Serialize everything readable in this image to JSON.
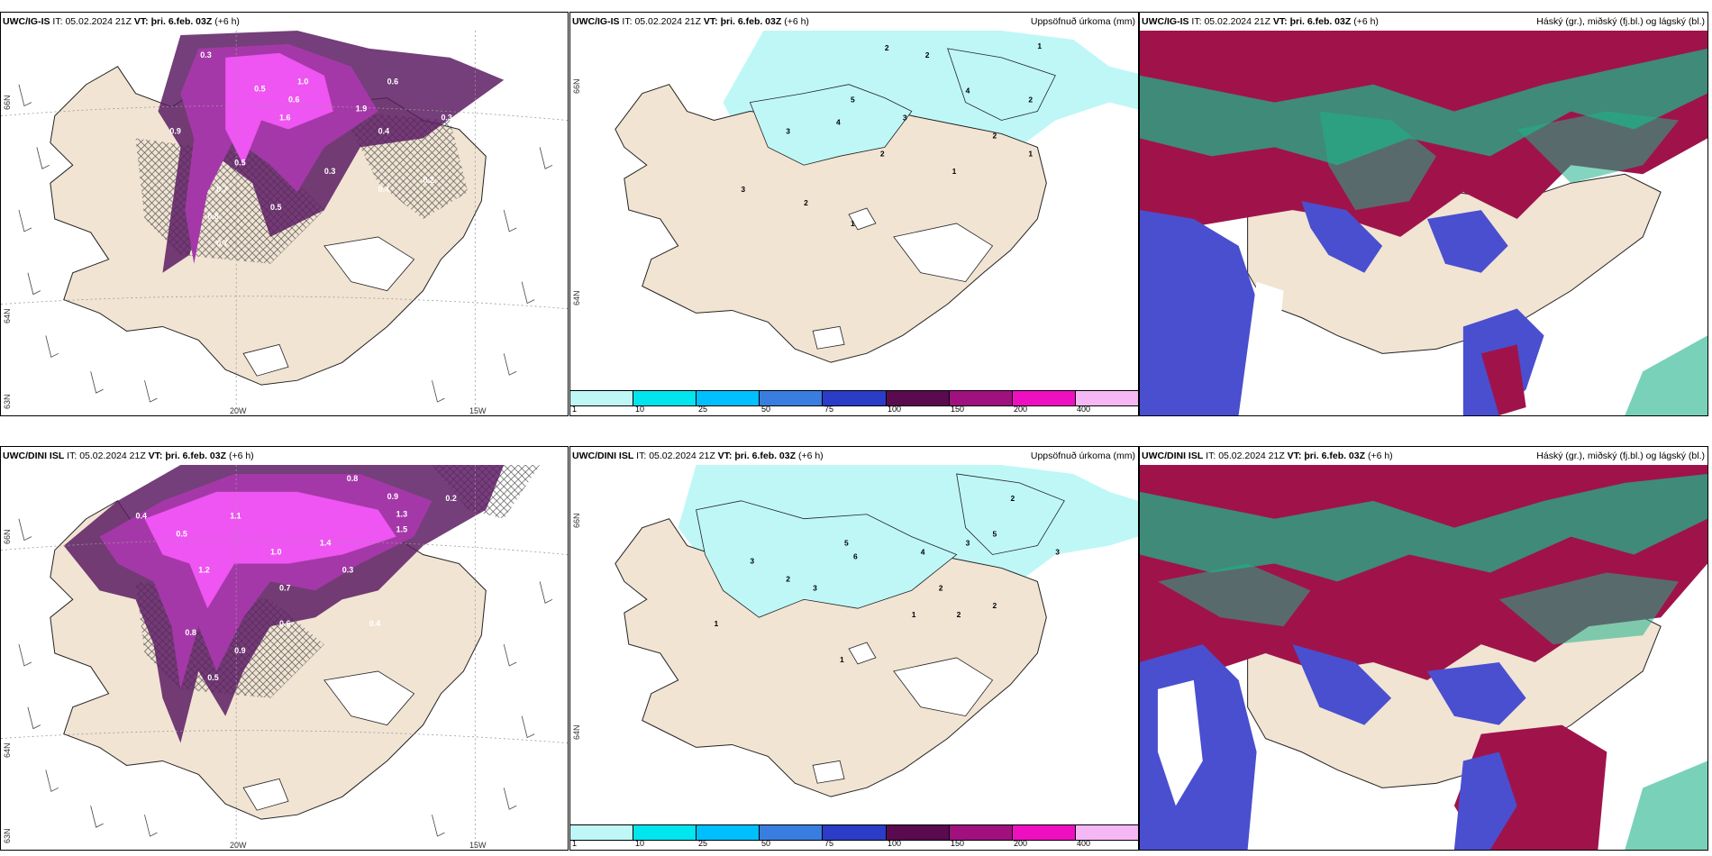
{
  "panels": [
    {
      "model": "UWC/IG-IS",
      "it_label": "IT:",
      "it_value": "05.02.2024 21Z",
      "vt_label": "VT:",
      "vt_value": "þri. 6.feb. 03Z",
      "lead": "(+6 h)",
      "right_title": "",
      "coords": {
        "lat1": "66N",
        "lat2": "64N",
        "lat3": "63N",
        "lon1": "20W",
        "lon2": "15W"
      },
      "values": [
        "0.3",
        "0.5",
        "0.6",
        "0.9",
        "1.6",
        "1.9",
        "0.4",
        "0.7",
        "0.5",
        "0.8",
        "0.3",
        "0.2",
        "0.4",
        "0.5",
        "0.7",
        "1.0",
        "0.3",
        "0.6"
      ]
    },
    {
      "model": "UWC/IG-IS",
      "it_label": "IT:",
      "it_value": "05.02.2024 21Z",
      "vt_label": "VT:",
      "vt_value": "þri. 6.feb. 03Z",
      "lead": "(+6 h)",
      "right_title": "Uppsöfnuð úrkoma (mm)",
      "coords": {
        "lat1": "66N",
        "lat2": "64N"
      },
      "values": [
        "2",
        "2",
        "1",
        "3",
        "4",
        "5",
        "2",
        "3",
        "4",
        "2",
        "1",
        "1",
        "2",
        "3",
        "1",
        "2"
      ]
    },
    {
      "model": "UWC/IG-IS",
      "it_label": "IT:",
      "it_value": "05.02.2024 21Z",
      "vt_label": "VT:",
      "vt_value": "þri. 6.feb. 03Z",
      "lead": "(+6 h)",
      "right_title": "Háský (gr.), miðský (fj.bl.) og lágský (bl.)"
    },
    {
      "model": "UWC/DINI ISL",
      "it_label": "IT:",
      "it_value": "05.02.2024 21Z",
      "vt_label": "VT:",
      "vt_value": "þri. 6.feb. 03Z",
      "lead": "(+6 h)",
      "right_title": "",
      "coords": {
        "lat1": "66N",
        "lat2": "64N",
        "lat3": "63N",
        "lon1": "20W",
        "lon2": "15W"
      },
      "values": [
        "0.8",
        "0.9",
        "1.3",
        "1.5",
        "0.4",
        "0.5",
        "1.2",
        "1.0",
        "0.7",
        "0.3",
        "0.6",
        "0.8",
        "1.4",
        "0.5",
        "0.9",
        "0.4",
        "0.2",
        "1.1"
      ]
    },
    {
      "model": "UWC/DINI ISL",
      "it_label": "IT:",
      "it_value": "05.02.2024 21Z",
      "vt_label": "VT:",
      "vt_value": "þri. 6.feb. 03Z",
      "lead": "(+6 h)",
      "right_title": "Uppsöfnuð úrkoma (mm)",
      "coords": {
        "lat1": "66N",
        "lat2": "64N"
      },
      "values": [
        "2",
        "3",
        "5",
        "6",
        "4",
        "3",
        "2",
        "1",
        "5",
        "3",
        "2",
        "1",
        "2",
        "3",
        "1",
        "2"
      ]
    },
    {
      "model": "UWC/DINI ISL",
      "it_label": "IT:",
      "it_value": "05.02.2024 21Z",
      "vt_label": "VT:",
      "vt_value": "þri. 6.feb. 03Z",
      "lead": "(+6 h)",
      "right_title": "Háský (gr.), miðský (fj.bl.) og lágský (bl.)"
    }
  ],
  "legend": {
    "labels": [
      "1",
      "10",
      "25",
      "50",
      "75",
      "100",
      "150",
      "200",
      "400",
      ""
    ],
    "colors": [
      "#bff7f7",
      "#00e5ee",
      "#00bfff",
      "#3a7de0",
      "#2b3cc7",
      "#5a0a4e",
      "#a0107f",
      "#ee10c0",
      "#f6b8f4"
    ]
  },
  "colors": {
    "land": "#f1e4d3",
    "precip_dark": "#5c1d63",
    "precip_mid": "#a538a8",
    "precip_bright": "#ee55f2",
    "precip_light": "#bff7f7",
    "cloud_high": "#1fb38a",
    "cloud_mid": "#a0134a",
    "cloud_low": "#4a4fcf"
  }
}
